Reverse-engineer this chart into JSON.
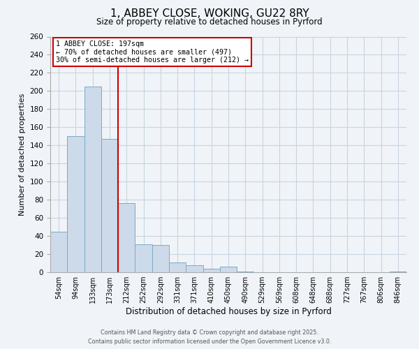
{
  "title": "1, ABBEY CLOSE, WOKING, GU22 8RY",
  "subtitle": "Size of property relative to detached houses in Pyrford",
  "xlabel": "Distribution of detached houses by size in Pyrford",
  "ylabel": "Number of detached properties",
  "bar_labels": [
    "54sqm",
    "94sqm",
    "133sqm",
    "173sqm",
    "212sqm",
    "252sqm",
    "292sqm",
    "331sqm",
    "371sqm",
    "410sqm",
    "450sqm",
    "490sqm",
    "529sqm",
    "569sqm",
    "608sqm",
    "648sqm",
    "688sqm",
    "727sqm",
    "767sqm",
    "806sqm",
    "846sqm"
  ],
  "bar_values": [
    45,
    150,
    205,
    147,
    76,
    31,
    30,
    11,
    8,
    4,
    6,
    1,
    0,
    0,
    0,
    0,
    0,
    0,
    0,
    0,
    1
  ],
  "bar_color": "#cddaea",
  "bar_edge_color": "#7aaac8",
  "ylim": [
    0,
    260
  ],
  "yticks": [
    0,
    20,
    40,
    60,
    80,
    100,
    120,
    140,
    160,
    180,
    200,
    220,
    240,
    260
  ],
  "vline_color": "#cc0000",
  "annotation_title": "1 ABBEY CLOSE: 197sqm",
  "annotation_line1": "← 70% of detached houses are smaller (497)",
  "annotation_line2": "30% of semi-detached houses are larger (212) →",
  "annotation_box_color": "#cc0000",
  "footer_line1": "Contains HM Land Registry data © Crown copyright and database right 2025.",
  "footer_line2": "Contains public sector information licensed under the Open Government Licence v3.0.",
  "background_color": "#ffffff",
  "grid_color": "#c8d4e0",
  "fig_bg": "#f0f4f8"
}
